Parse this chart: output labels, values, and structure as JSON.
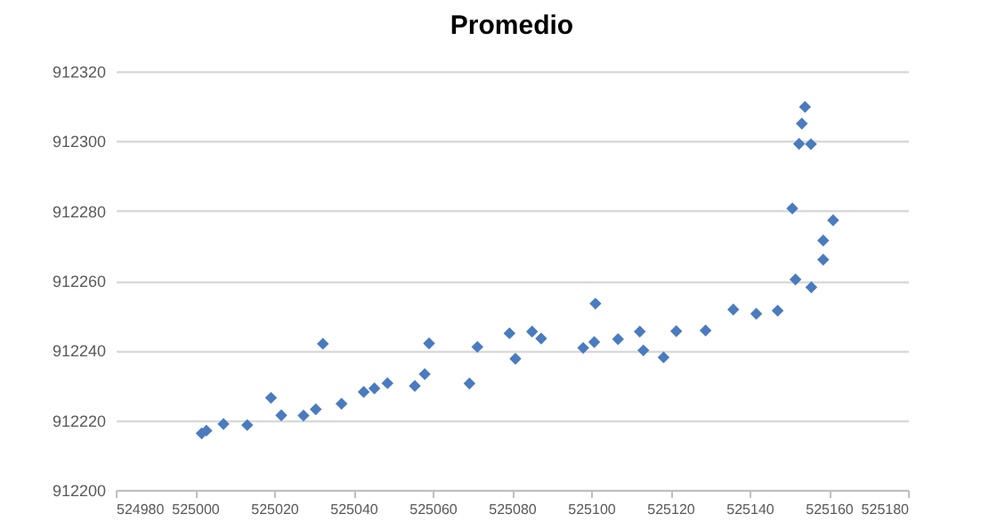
{
  "chart_data": {
    "type": "scatter",
    "title": "Promedio",
    "marker": "diamond",
    "grid": "y",
    "xlim": [
      524980,
      525180
    ],
    "xticks": [
      524980,
      525000,
      525020,
      525040,
      525060,
      525080,
      525100,
      525120,
      525140,
      525160,
      525180
    ],
    "ylim": [
      912200,
      912320
    ],
    "yticks": [
      912200,
      912220,
      912240,
      912260,
      912280,
      912300,
      912320
    ],
    "series": [
      {
        "color": "#4a7bbf",
        "x": [
          525001.7,
          525002.9,
          525007.2,
          525013.2,
          525019.2,
          525021.8,
          525027.4,
          525030.5,
          525032.3,
          525037.0,
          525042.6,
          525045.3,
          525048.6,
          525055.5,
          525058.0,
          525059.1,
          525069.3,
          525071.3,
          525079.4,
          525080.9,
          525085.1,
          525087.4,
          525098.0,
          525100.8,
          525101.1,
          525106.8,
          525112.3,
          525113.2,
          525118.3,
          525121.5,
          525128.9,
          525135.9,
          525141.7,
          525147.1,
          525150.8,
          525151.6,
          525152.5,
          525153.2,
          525154.0,
          525155.5,
          525155.6,
          525158.6,
          525158.6,
          525161.1
        ],
        "values": [
          912216.2,
          912217.0,
          912218.9,
          912218.6,
          912226.4,
          912221.4,
          912221.3,
          912223.1,
          912241.9,
          912224.7,
          912228.1,
          912229.1,
          912230.6,
          912229.8,
          912233.2,
          912242.0,
          912230.5,
          912241.0,
          912244.9,
          912237.6,
          912245.4,
          912243.4,
          912240.7,
          912242.4,
          912253.4,
          912243.2,
          912245.4,
          912240.0,
          912238.0,
          912245.5,
          912245.7,
          912251.7,
          912250.5,
          912251.4,
          912280.7,
          912260.3,
          912299.2,
          912305.0,
          912309.8,
          912299.1,
          912258.1,
          912266.0,
          912271.5,
          912277.3
        ]
      }
    ]
  }
}
